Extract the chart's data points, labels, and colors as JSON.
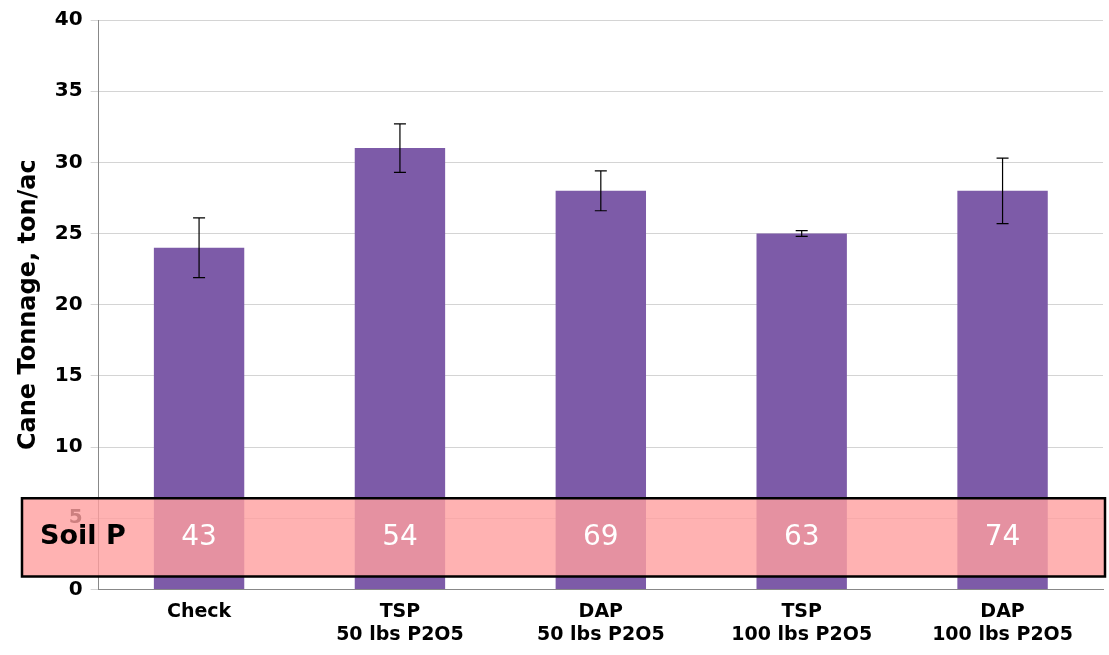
{
  "chart_data": {
    "type": "bar",
    "ylabel": "Cane Tonnage, ton/ac",
    "categories": [
      "Check",
      "TSP\n50 lbs P2O5",
      "DAP\n50 lbs P2O5",
      "TSP\n100 lbs P2O5",
      "DAP\n100 lbs P2O5"
    ],
    "values": [
      24,
      31,
      28,
      25,
      28
    ],
    "errors": [
      2.1,
      1.7,
      1.4,
      0.2,
      2.3
    ],
    "color": "#7d5ba8",
    "ylim": [
      0,
      40
    ],
    "yticks": [
      0,
      5,
      10,
      15,
      20,
      25,
      30,
      35,
      40
    ],
    "grid": "y",
    "bands": [
      {
        "axis": "y",
        "from": 0.9,
        "to": 6.4,
        "label": "Soil P",
        "color": "#ff9f9f"
      }
    ],
    "annotations": [
      "43",
      "54",
      "69",
      "63",
      "74"
    ]
  }
}
